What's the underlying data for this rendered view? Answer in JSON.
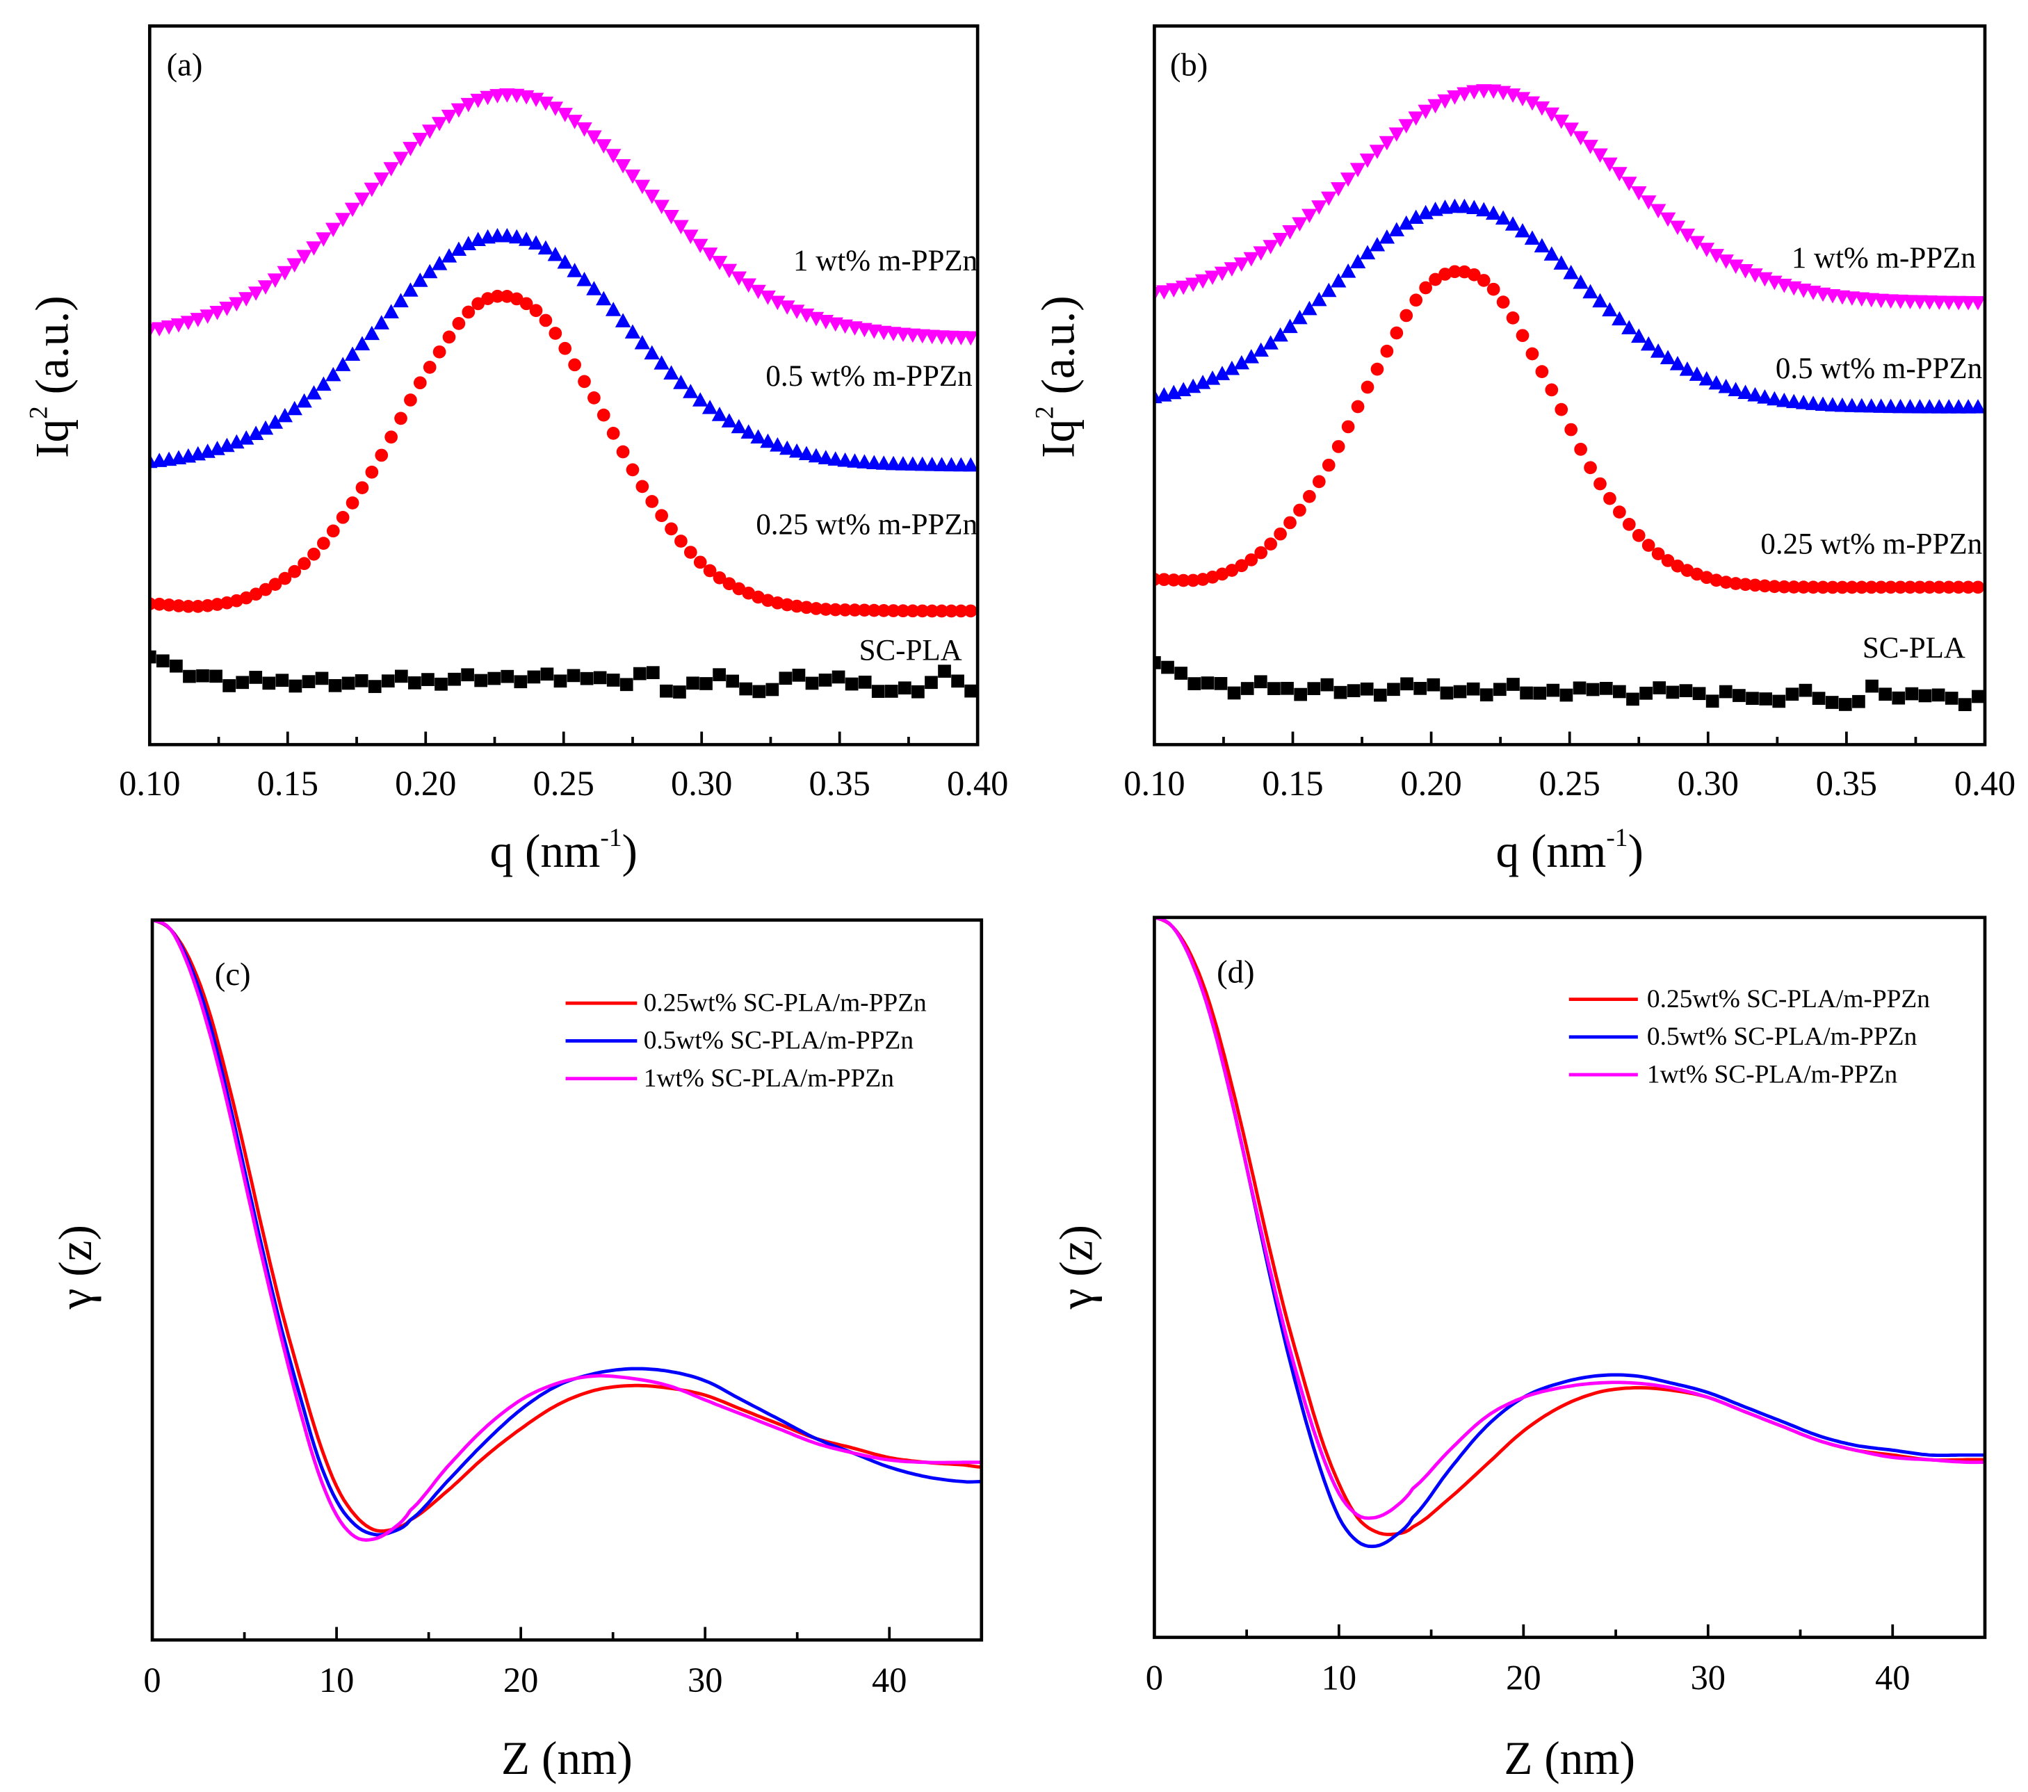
{
  "colors": {
    "red": "#ff0000",
    "blue": "#0000ff",
    "magenta": "#ff00ff",
    "black": "#000000"
  },
  "chart_data": [
    {
      "panel": "(a)",
      "type": "scatter",
      "xlabel_main": "q (nm",
      "xlabel_sup": "-1",
      "xlabel_rest": ")",
      "ylabel_main": "Iq",
      "ylabel_sup": "2",
      "ylabel_rest": " (a.u.)",
      "xlim": [
        0.1,
        0.4
      ],
      "ylim": [
        0,
        100
      ],
      "xticks": [
        "0.10",
        "0.15",
        "0.20",
        "0.25",
        "0.30",
        "0.35",
        "0.40"
      ],
      "x": [
        0.1,
        0.12,
        0.14,
        0.16,
        0.18,
        0.2,
        0.22,
        0.24,
        0.26,
        0.28,
        0.3,
        0.32,
        0.34,
        0.36,
        0.38,
        0.4
      ],
      "series": [
        {
          "name": "1 wt% m-PPZn",
          "color": "magenta",
          "marker": "triangle-down",
          "values": [
            57.7,
            59.5,
            63.2,
            69.3,
            77.1,
            84.9,
            89.8,
            89.8,
            84.9,
            77.1,
            69.3,
            63.2,
            59.5,
            57.7,
            56.9,
            56.6
          ]
        },
        {
          "name": "0.5 wt% m-PPZn",
          "color": "blue",
          "marker": "triangle-up",
          "values": [
            39.4,
            40.7,
            43.6,
            49.1,
            57.0,
            65.3,
            70.4,
            69.8,
            63.8,
            55.3,
            47.8,
            42.9,
            40.3,
            39.3,
            39.0,
            38.9
          ]
        },
        {
          "name": "0.25 wt% m-PPZn",
          "color": "red",
          "marker": "circle",
          "values": [
            19.6,
            19.3,
            21.2,
            26.7,
            37.6,
            51.6,
            61.6,
            60.4,
            48.9,
            35.0,
            25.2,
            20.6,
            19.0,
            18.7,
            18.6,
            18.6
          ]
        },
        {
          "name": "SC-PLA",
          "color": "black",
          "marker": "square",
          "noisy": true,
          "x": [
            0.1,
            0.11,
            0.12,
            0.13,
            0.14,
            0.15,
            0.16,
            0.17,
            0.18,
            0.19,
            0.2,
            0.21,
            0.22,
            0.23,
            0.24,
            0.25,
            0.26,
            0.27,
            0.28,
            0.29,
            0.3,
            0.31,
            0.32,
            0.33,
            0.34,
            0.35,
            0.36,
            0.37,
            0.38,
            0.39,
            0.4
          ],
          "values": [
            12.8,
            10.5,
            9.5,
            8.5,
            8.8,
            8.7,
            8.9,
            8.6,
            8.4,
            8.9,
            8.8,
            9.2,
            9.4,
            9.0,
            9.3,
            9.1,
            9.8,
            8.5,
            10.0,
            7.2,
            8.5,
            9.6,
            7.0,
            9.2,
            8.9,
            8.8,
            8.4,
            7.5,
            8.0,
            9.8,
            6.7
          ]
        }
      ]
    },
    {
      "panel": "(b)",
      "type": "scatter",
      "xlabel_main": "q (nm",
      "xlabel_sup": "-1",
      "xlabel_rest": ")",
      "ylabel_main": "Iq",
      "ylabel_sup": "2",
      "ylabel_rest": " (a.u.)",
      "xlim": [
        0.1,
        0.4
      ],
      "ylim": [
        0,
        100
      ],
      "xticks": [
        "0.10",
        "0.15",
        "0.20",
        "0.25",
        "0.30",
        "0.35",
        "0.40"
      ],
      "x": [
        0.1,
        0.12,
        0.14,
        0.16,
        0.18,
        0.2,
        0.22,
        0.24,
        0.26,
        0.28,
        0.3,
        0.32,
        0.34,
        0.36,
        0.38,
        0.4
      ],
      "series": [
        {
          "name": "1 wt% m-PPZn",
          "color": "magenta",
          "marker": "triangle-down",
          "values": [
            62.8,
            64.9,
            68.8,
            75.0,
            82.4,
            88.6,
            91.0,
            88.6,
            82.4,
            75.0,
            68.8,
            64.9,
            62.8,
            61.9,
            61.6,
            61.5
          ]
        },
        {
          "name": "0.5 wt% m-PPZn",
          "color": "blue",
          "marker": "triangle-up",
          "values": [
            48.4,
            50.8,
            55.3,
            62.1,
            69.4,
            74.3,
            74.3,
            69.4,
            62.1,
            55.3,
            50.8,
            48.4,
            47.4,
            47.1,
            47.0,
            47.0
          ]
        },
        {
          "name": "0.25 wt% m-PPZn",
          "color": "red",
          "marker": "circle",
          "values": [
            23.0,
            23.2,
            27.2,
            36.9,
            51.9,
            64.3,
            64.3,
            51.9,
            36.9,
            27.2,
            23.2,
            22.1,
            21.9,
            21.9,
            21.9,
            21.9
          ]
        },
        {
          "name": "SC-PLA",
          "color": "black",
          "marker": "square",
          "noisy": true,
          "x": [
            0.1,
            0.11,
            0.12,
            0.13,
            0.14,
            0.15,
            0.16,
            0.17,
            0.18,
            0.19,
            0.2,
            0.21,
            0.22,
            0.23,
            0.24,
            0.25,
            0.26,
            0.27,
            0.28,
            0.29,
            0.3,
            0.31,
            0.32,
            0.33,
            0.34,
            0.35,
            0.36,
            0.37,
            0.38,
            0.39,
            0.4
          ],
          "values": [
            12,
            9.5,
            8.5,
            7.5,
            8.2,
            7.5,
            8,
            7.6,
            7.2,
            7.8,
            8.1,
            7.5,
            7.4,
            7.9,
            7.0,
            7.2,
            8.3,
            6.8,
            7.3,
            7.6,
            6.2,
            7.5,
            6.0,
            7.0,
            6.8,
            5.0,
            8.0,
            6.5,
            7.3,
            5.8,
            6.8
          ]
        }
      ]
    },
    {
      "panel": "(c)",
      "type": "line",
      "xlabel_main": "Z (nm)",
      "ylabel_main": "γ (z)",
      "xlim": [
        0,
        45
      ],
      "ylim": [
        -0.5,
        1.0
      ],
      "xticks": [
        "0",
        "10",
        "20",
        "30",
        "40"
      ],
      "x": [
        0,
        1,
        2,
        3,
        4,
        5,
        6,
        7,
        8,
        9,
        10,
        11,
        12,
        13,
        14,
        16,
        18,
        20,
        22,
        24,
        26,
        28,
        30,
        32,
        34,
        36,
        38,
        40,
        42,
        44,
        45
      ],
      "series": [
        {
          "name": "0.25wt% SC-PLA/m-PPZn",
          "color": "red",
          "values": [
            1.0,
            0.98,
            0.92,
            0.82,
            0.68,
            0.52,
            0.35,
            0.19,
            0.05,
            -0.08,
            -0.18,
            -0.24,
            -0.27,
            -0.27,
            -0.25,
            -0.19,
            -0.12,
            -0.06,
            -0.01,
            0.02,
            0.03,
            0.025,
            0.01,
            -0.02,
            -0.05,
            -0.08,
            -0.1,
            -0.12,
            -0.13,
            -0.135,
            -0.14
          ]
        },
        {
          "name": "0.5wt% SC-PLA/m-PPZn",
          "color": "blue",
          "values": [
            1.0,
            0.98,
            0.91,
            0.8,
            0.65,
            0.48,
            0.31,
            0.15,
            0.01,
            -0.12,
            -0.21,
            -0.26,
            -0.28,
            -0.275,
            -0.25,
            -0.17,
            -0.09,
            -0.02,
            0.03,
            0.055,
            0.065,
            0.06,
            0.04,
            0.0,
            -0.04,
            -0.08,
            -0.11,
            -0.14,
            -0.16,
            -0.17,
            -0.17
          ]
        },
        {
          "name": "1wt% SC-PLA/m-PPZn",
          "color": "magenta",
          "values": [
            1.0,
            0.98,
            0.9,
            0.78,
            0.63,
            0.46,
            0.29,
            0.13,
            -0.02,
            -0.15,
            -0.24,
            -0.285,
            -0.29,
            -0.27,
            -0.23,
            -0.14,
            -0.06,
            0.0,
            0.035,
            0.05,
            0.045,
            0.03,
            0.0,
            -0.03,
            -0.06,
            -0.09,
            -0.11,
            -0.125,
            -0.13,
            -0.13,
            -0.13
          ]
        }
      ]
    },
    {
      "panel": "(d)",
      "type": "line",
      "xlabel_main": "Z (nm)",
      "ylabel_main": "γ (z)",
      "xlim": [
        0,
        45
      ],
      "ylim": [
        -0.5,
        1.0
      ],
      "xticks": [
        "0",
        "10",
        "20",
        "30",
        "40"
      ],
      "x": [
        0,
        1,
        2,
        3,
        4,
        5,
        6,
        7,
        8,
        9,
        10,
        11,
        12,
        13,
        14,
        16,
        18,
        20,
        22,
        24,
        26,
        28,
        30,
        32,
        34,
        36,
        38,
        40,
        42,
        44,
        45
      ],
      "series": [
        {
          "name": "0.25wt% SC-PLA/m-PPZn",
          "color": "red",
          "values": [
            1.0,
            0.98,
            0.92,
            0.82,
            0.68,
            0.52,
            0.35,
            0.19,
            0.05,
            -0.08,
            -0.18,
            -0.25,
            -0.28,
            -0.285,
            -0.27,
            -0.21,
            -0.14,
            -0.07,
            -0.02,
            0.01,
            0.02,
            0.015,
            0.0,
            -0.03,
            -0.06,
            -0.09,
            -0.11,
            -0.12,
            -0.13,
            -0.13,
            -0.13
          ]
        },
        {
          "name": "0.5wt% SC-PLA/m-PPZn",
          "color": "blue",
          "values": [
            1.0,
            0.98,
            0.91,
            0.8,
            0.65,
            0.48,
            0.3,
            0.13,
            -0.02,
            -0.15,
            -0.25,
            -0.3,
            -0.31,
            -0.29,
            -0.25,
            -0.15,
            -0.06,
            0.0,
            0.03,
            0.045,
            0.045,
            0.03,
            0.01,
            -0.02,
            -0.05,
            -0.08,
            -0.1,
            -0.11,
            -0.12,
            -0.12,
            -0.12
          ]
        },
        {
          "name": "1wt% SC-PLA/m-PPZn",
          "color": "magenta",
          "values": [
            1.0,
            0.98,
            0.91,
            0.8,
            0.65,
            0.48,
            0.31,
            0.15,
            0.01,
            -0.11,
            -0.2,
            -0.245,
            -0.25,
            -0.23,
            -0.19,
            -0.11,
            -0.04,
            0.0,
            0.02,
            0.03,
            0.03,
            0.02,
            0.0,
            -0.03,
            -0.06,
            -0.09,
            -0.11,
            -0.125,
            -0.13,
            -0.135,
            -0.135
          ]
        }
      ]
    }
  ]
}
